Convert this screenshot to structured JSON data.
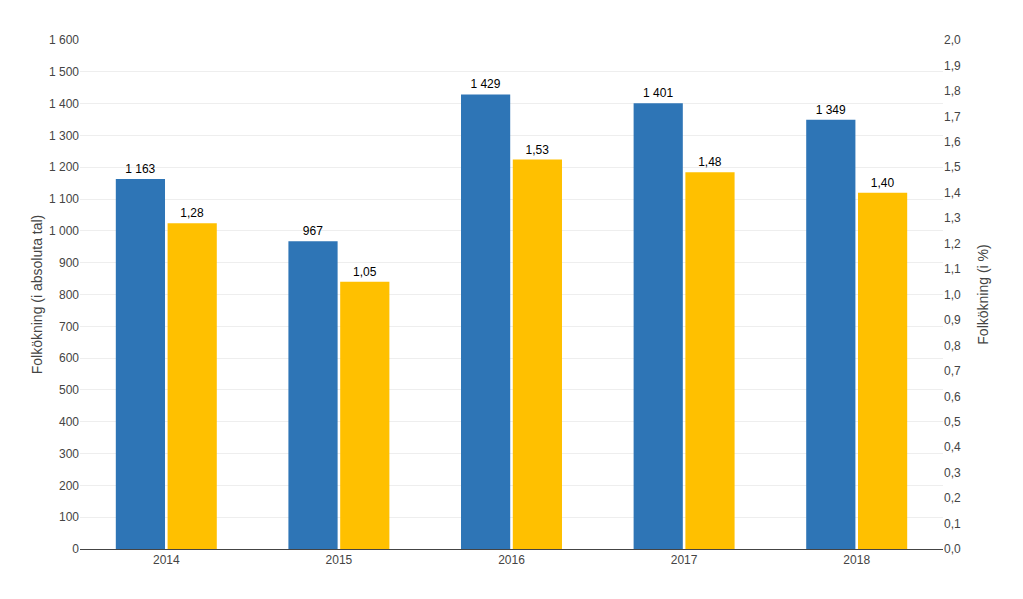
{
  "chart_data": {
    "type": "bar",
    "categories": [
      "2014",
      "2015",
      "2016",
      "2017",
      "2018"
    ],
    "series": [
      {
        "color": "#2E75B6",
        "values": [
          1163,
          967,
          1429,
          1401,
          1349
        ],
        "value_labels": [
          "1 163",
          "967",
          "1 429",
          "1 401",
          "1 349"
        ]
      },
      {
        "color": "#FFC000",
        "axis": "y2",
        "values": [
          1.28,
          1.05,
          1.53,
          1.48,
          1.4
        ],
        "value_labels": [
          "1,28",
          "1,05",
          "1,53",
          "1,48",
          "1,40"
        ]
      }
    ],
    "ylabel": "Folkökning (i absoluta tal)",
    "y2label": "Folkökning (i %)",
    "ylim": [
      0,
      1600
    ],
    "yticks": [
      0,
      100,
      200,
      300,
      400,
      500,
      600,
      700,
      800,
      900,
      {
        "value": 1000,
        "label": "1 000"
      },
      {
        "value": 1100,
        "label": "1 100"
      },
      {
        "value": 1200,
        "label": "1 200"
      },
      {
        "value": 1300,
        "label": "1 300"
      },
      {
        "value": 1400,
        "label": "1 400"
      },
      {
        "value": 1500,
        "label": "1 500"
      },
      {
        "value": 1600,
        "label": "1 600"
      }
    ],
    "y2lim": [
      0,
      2.0
    ],
    "y2ticks": [
      {
        "value": 0.0,
        "label": "0,0"
      },
      {
        "value": 0.1,
        "label": "0,1"
      },
      {
        "value": 0.2,
        "label": "0,2"
      },
      {
        "value": 0.3,
        "label": "0,3"
      },
      {
        "value": 0.4,
        "label": "0,4"
      },
      {
        "value": 0.5,
        "label": "0,5"
      },
      {
        "value": 0.6,
        "label": "0,6"
      },
      {
        "value": 0.7,
        "label": "0,7"
      },
      {
        "value": 0.8,
        "label": "0,8"
      },
      {
        "value": 0.9,
        "label": "0,9"
      },
      {
        "value": 1.0,
        "label": "1,0"
      },
      {
        "value": 1.1,
        "label": "1,1"
      },
      {
        "value": 1.2,
        "label": "1,2"
      },
      {
        "value": 1.3,
        "label": "1,3"
      },
      {
        "value": 1.4,
        "label": "1,4"
      },
      {
        "value": 1.5,
        "label": "1,5"
      },
      {
        "value": 1.6,
        "label": "1,6"
      },
      {
        "value": 1.7,
        "label": "1,7"
      },
      {
        "value": 1.8,
        "label": "1,8"
      },
      {
        "value": 1.9,
        "label": "1,9"
      },
      {
        "value": 2.0,
        "label": "2,0"
      }
    ],
    "grid": true,
    "data_labels": true
  }
}
